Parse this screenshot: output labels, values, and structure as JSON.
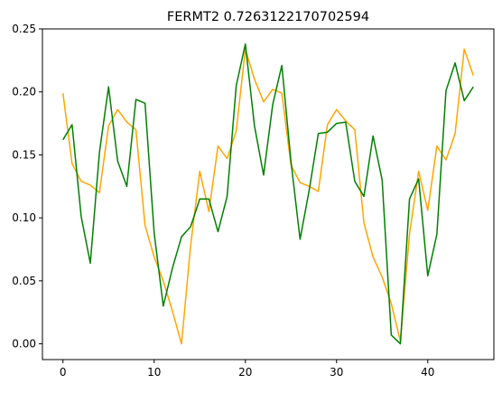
{
  "chart_data": {
    "type": "line",
    "title": "FERMT2 0.7263122170702594",
    "xlabel": "",
    "ylabel": "",
    "xlim": [
      -2.25,
      47.25
    ],
    "ylim": [
      -0.0125,
      0.25
    ],
    "xticks": [
      0,
      10,
      20,
      30,
      40
    ],
    "yticks": [
      0.0,
      0.05,
      0.1,
      0.15,
      0.2,
      0.25
    ],
    "ytick_labels": [
      "0.00",
      "0.05",
      "0.10",
      "0.15",
      "0.20",
      "0.25"
    ],
    "grid": false,
    "legend": "none",
    "x": [
      0,
      1,
      2,
      3,
      4,
      5,
      6,
      7,
      8,
      9,
      10,
      11,
      12,
      13,
      14,
      15,
      16,
      17,
      18,
      19,
      20,
      21,
      22,
      23,
      24,
      25,
      26,
      27,
      28,
      29,
      30,
      31,
      32,
      33,
      34,
      35,
      36,
      37,
      38,
      39,
      40,
      41,
      42,
      43,
      44,
      45
    ],
    "series": [
      {
        "color": "#ffa500",
        "values": [
          0.199,
          0.143,
          0.129,
          0.126,
          0.12,
          0.173,
          0.186,
          0.176,
          0.17,
          0.094,
          0.069,
          0.05,
          0.026,
          0.0,
          0.078,
          0.137,
          0.105,
          0.157,
          0.147,
          0.169,
          0.234,
          0.21,
          0.192,
          0.202,
          0.199,
          0.142,
          0.128,
          0.125,
          0.121,
          0.174,
          0.186,
          0.177,
          0.17,
          0.096,
          0.069,
          0.053,
          0.032,
          0.002,
          0.087,
          0.137,
          0.106,
          0.157,
          0.146,
          0.167,
          0.234,
          0.213
        ]
      },
      {
        "color": "#008000",
        "values": [
          0.162,
          0.174,
          0.101,
          0.064,
          0.152,
          0.204,
          0.145,
          0.125,
          0.194,
          0.191,
          0.088,
          0.03,
          0.06,
          0.085,
          0.093,
          0.115,
          0.115,
          0.089,
          0.117,
          0.205,
          0.238,
          0.173,
          0.134,
          0.19,
          0.221,
          0.145,
          0.083,
          0.122,
          0.167,
          0.168,
          0.175,
          0.176,
          0.129,
          0.117,
          0.165,
          0.13,
          0.007,
          0.0,
          0.115,
          0.131,
          0.054,
          0.087,
          0.201,
          0.223,
          0.193,
          0.204
        ]
      }
    ]
  }
}
